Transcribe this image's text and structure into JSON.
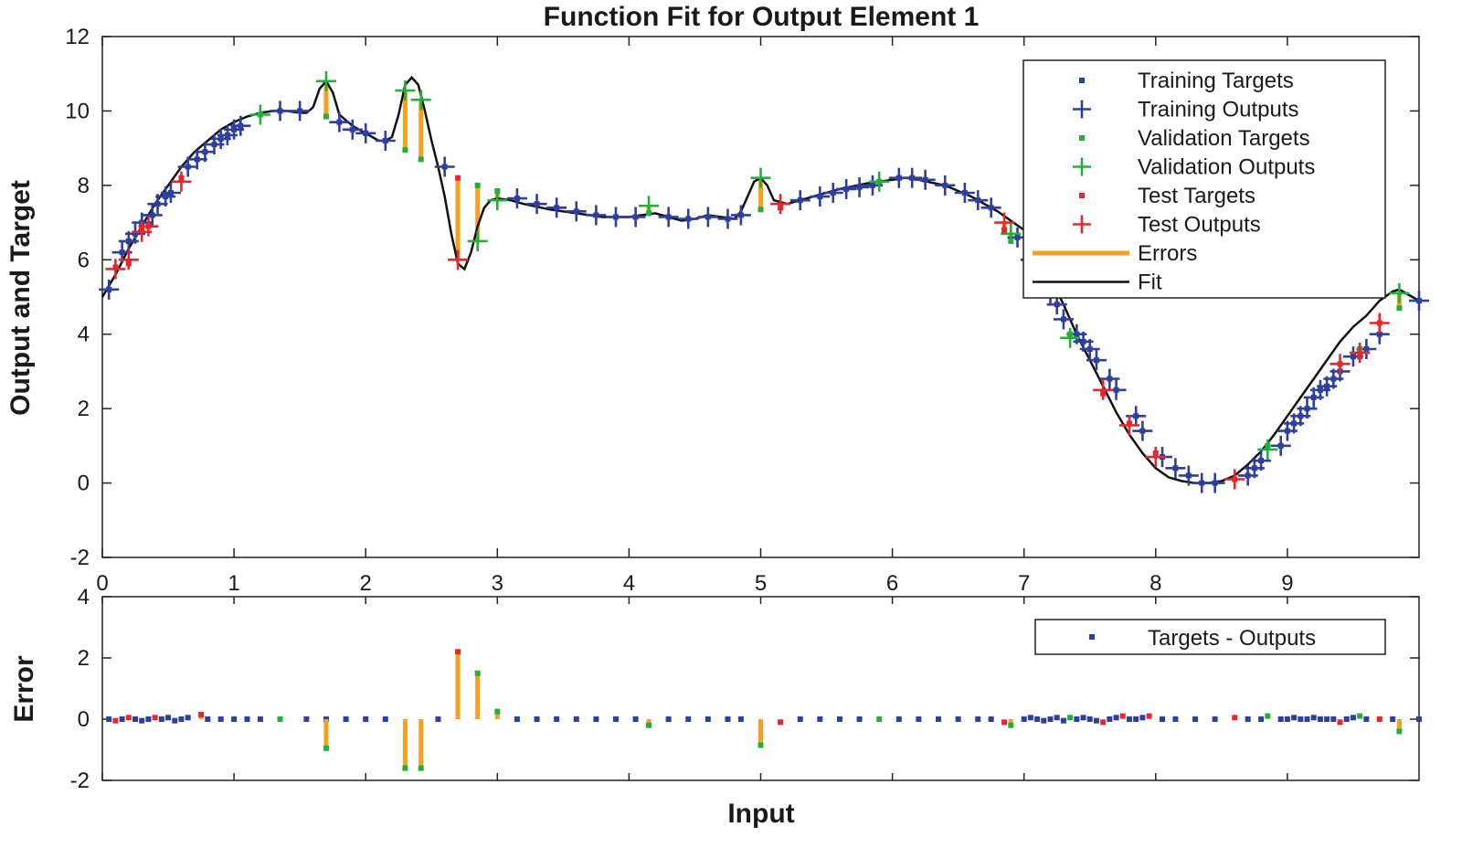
{
  "chart_data": [
    {
      "type": "line",
      "title": "Function Fit for Output Element 1",
      "xlabel": "",
      "ylabel": "Output and Target",
      "xlim": [
        0,
        10
      ],
      "ylim": [
        -2,
        12
      ],
      "xticks": [
        "0",
        "1",
        "2",
        "3",
        "4",
        "5",
        "6",
        "7",
        "8",
        "9"
      ],
      "yticks": [
        "-2",
        "0",
        "2",
        "4",
        "6",
        "8",
        "10",
        "12"
      ],
      "legend_position": "top-right",
      "legend": [
        "Training Targets",
        "Training Outputs",
        "Validation Targets",
        "Validation Outputs",
        "Test Targets",
        "Test Outputs",
        "Errors",
        "Fit"
      ],
      "colors": {
        "training": "#2e3f9e",
        "validation": "#22b03a",
        "test": "#e8262b",
        "errors": "#f5a11e",
        "fit": "#111111"
      },
      "fit_x": [
        0.0,
        0.1,
        0.2,
        0.3,
        0.4,
        0.5,
        0.6,
        0.7,
        0.8,
        0.9,
        1.0,
        1.1,
        1.2,
        1.3,
        1.4,
        1.5,
        1.55,
        1.6,
        1.65,
        1.7,
        1.75,
        1.8,
        1.9,
        2.0,
        2.1,
        2.15,
        2.2,
        2.25,
        2.3,
        2.35,
        2.4,
        2.45,
        2.5,
        2.55,
        2.6,
        2.65,
        2.7,
        2.75,
        2.8,
        2.85,
        2.9,
        2.95,
        3.0,
        3.1,
        3.2,
        3.4,
        3.6,
        3.8,
        4.0,
        4.1,
        4.2,
        4.3,
        4.4,
        4.5,
        4.6,
        4.7,
        4.8,
        4.85,
        4.9,
        4.95,
        5.0,
        5.05,
        5.1,
        5.2,
        5.4,
        5.6,
        5.8,
        6.0,
        6.1,
        6.2,
        6.4,
        6.6,
        6.8,
        7.0,
        7.1,
        7.2,
        7.3,
        7.4,
        7.5,
        7.6,
        7.7,
        7.8,
        7.9,
        8.0,
        8.1,
        8.2,
        8.3,
        8.4,
        8.5,
        8.6,
        8.7,
        8.8,
        8.9,
        9.0,
        9.1,
        9.2,
        9.3,
        9.4,
        9.5,
        9.6,
        9.7,
        9.8,
        9.85,
        9.9,
        9.95,
        10.0
      ],
      "fit_y": [
        5.0,
        5.6,
        6.3,
        6.9,
        7.5,
        8.0,
        8.5,
        8.9,
        9.2,
        9.5,
        9.7,
        9.85,
        9.95,
        10.0,
        10.0,
        9.95,
        9.95,
        10.1,
        10.6,
        10.8,
        10.5,
        9.9,
        9.6,
        9.4,
        9.2,
        9.2,
        9.3,
        9.9,
        10.7,
        10.9,
        10.7,
        10.0,
        9.2,
        8.5,
        7.7,
        6.7,
        5.9,
        5.75,
        6.2,
        6.9,
        7.4,
        7.6,
        7.65,
        7.6,
        7.5,
        7.35,
        7.25,
        7.15,
        7.15,
        7.2,
        7.25,
        7.15,
        7.05,
        7.1,
        7.2,
        7.15,
        7.1,
        7.3,
        7.7,
        8.1,
        8.2,
        8.0,
        7.6,
        7.5,
        7.7,
        7.9,
        8.05,
        8.15,
        8.2,
        8.15,
        8.0,
        7.7,
        7.3,
        6.8,
        6.2,
        5.5,
        4.8,
        4.0,
        3.3,
        2.6,
        1.9,
        1.3,
        0.8,
        0.4,
        0.15,
        0.05,
        0.0,
        0.0,
        0.05,
        0.2,
        0.5,
        0.85,
        1.3,
        1.8,
        2.3,
        2.8,
        3.3,
        3.8,
        4.2,
        4.5,
        4.9,
        5.15,
        5.2,
        5.1,
        5.0,
        4.9
      ],
      "training": {
        "x": [
          0.05,
          0.15,
          0.2,
          0.25,
          0.3,
          0.38,
          0.42,
          0.48,
          0.52,
          0.65,
          0.72,
          0.78,
          0.85,
          0.9,
          0.95,
          1.0,
          1.05,
          1.35,
          1.5,
          1.8,
          1.9,
          2.0,
          2.15,
          2.6,
          3.15,
          3.3,
          3.45,
          3.6,
          3.75,
          3.9,
          4.05,
          4.3,
          4.45,
          4.6,
          4.75,
          4.85,
          5.3,
          5.45,
          5.55,
          5.65,
          5.75,
          5.85,
          6.05,
          6.15,
          6.25,
          6.4,
          6.55,
          6.65,
          6.75,
          6.95,
          7.05,
          7.1,
          7.15,
          7.2,
          7.25,
          7.3,
          7.4,
          7.45,
          7.5,
          7.55,
          7.65,
          7.7,
          7.85,
          7.9,
          8.05,
          8.15,
          8.25,
          8.35,
          8.45,
          8.7,
          8.75,
          8.8,
          8.95,
          9.0,
          9.05,
          9.1,
          9.15,
          9.2,
          9.25,
          9.3,
          9.35,
          9.4,
          9.5,
          9.6,
          9.7,
          10.0
        ],
        "y": [
          5.2,
          6.2,
          6.5,
          6.7,
          7.0,
          7.2,
          7.5,
          7.7,
          7.8,
          8.5,
          8.7,
          8.9,
          9.1,
          9.25,
          9.35,
          9.5,
          9.6,
          10.0,
          10.0,
          9.7,
          9.5,
          9.4,
          9.2,
          8.5,
          7.65,
          7.5,
          7.4,
          7.3,
          7.2,
          7.15,
          7.15,
          7.15,
          7.1,
          7.15,
          7.1,
          7.2,
          7.6,
          7.7,
          7.8,
          7.9,
          7.95,
          8.0,
          8.2,
          8.2,
          8.15,
          8.0,
          7.8,
          7.6,
          7.4,
          6.6,
          6.0,
          5.8,
          5.4,
          5.1,
          4.8,
          4.4,
          4.0,
          3.8,
          3.6,
          3.3,
          2.8,
          2.5,
          1.8,
          1.4,
          0.7,
          0.4,
          0.2,
          0.0,
          0.0,
          0.2,
          0.4,
          0.6,
          1.0,
          1.4,
          1.6,
          1.8,
          2.0,
          2.3,
          2.5,
          2.6,
          2.8,
          3.0,
          3.4,
          3.6,
          4.0,
          4.9
        ]
      },
      "validation": {
        "x": [
          1.2,
          1.7,
          2.3,
          2.42,
          2.85,
          3.0,
          4.15,
          5.0,
          5.9,
          6.9,
          7.35,
          8.85,
          9.55,
          9.85
        ],
        "target": [
          9.9,
          9.85,
          8.95,
          8.7,
          8.0,
          7.85,
          7.25,
          7.35,
          8.1,
          6.5,
          4.0,
          1.0,
          3.6,
          4.7
        ],
        "output": [
          9.9,
          10.8,
          10.55,
          10.3,
          6.5,
          7.6,
          7.45,
          8.2,
          8.1,
          6.7,
          3.9,
          0.9,
          3.5,
          5.1
        ]
      },
      "test": {
        "x": [
          0.1,
          0.2,
          0.3,
          0.35,
          0.6,
          2.7,
          5.15,
          6.85,
          7.6,
          7.8,
          8.0,
          8.6,
          9.4,
          9.55,
          9.7
        ],
        "target": [
          5.8,
          5.9,
          6.8,
          6.9,
          8.2,
          8.2,
          7.4,
          6.8,
          2.4,
          1.6,
          0.8,
          0.1,
          3.2,
          3.4,
          4.3
        ],
        "output": [
          5.75,
          6.0,
          6.75,
          6.9,
          8.1,
          6.0,
          7.5,
          7.0,
          2.5,
          1.55,
          0.7,
          0.1,
          3.2,
          3.5,
          4.3
        ]
      }
    },
    {
      "type": "scatter",
      "title": "",
      "xlabel": "Input",
      "ylabel": "Error",
      "xlim": [
        0,
        10
      ],
      "ylim": [
        -2,
        4
      ],
      "yticks": [
        "-2",
        "0",
        "2",
        "4"
      ],
      "legend_position": "top-right",
      "legend": [
        "Targets - Outputs"
      ],
      "errors": [
        {
          "x": 0.05,
          "e": 0.0,
          "set": "training"
        },
        {
          "x": 0.1,
          "e": -0.05,
          "set": "test"
        },
        {
          "x": 0.15,
          "e": 0.0,
          "set": "training"
        },
        {
          "x": 0.2,
          "e": 0.05,
          "set": "test"
        },
        {
          "x": 0.25,
          "e": 0.0,
          "set": "training"
        },
        {
          "x": 0.3,
          "e": -0.05,
          "set": "training"
        },
        {
          "x": 0.35,
          "e": 0.0,
          "set": "training"
        },
        {
          "x": 0.4,
          "e": 0.05,
          "set": "test"
        },
        {
          "x": 0.45,
          "e": 0.0,
          "set": "training"
        },
        {
          "x": 0.5,
          "e": 0.05,
          "set": "training"
        },
        {
          "x": 0.55,
          "e": -0.05,
          "set": "training"
        },
        {
          "x": 0.6,
          "e": 0.0,
          "set": "training"
        },
        {
          "x": 0.65,
          "e": 0.05,
          "set": "training"
        },
        {
          "x": 0.75,
          "e": 0.15,
          "set": "test"
        },
        {
          "x": 0.8,
          "e": 0.0,
          "set": "training"
        },
        {
          "x": 0.9,
          "e": 0.0,
          "set": "training"
        },
        {
          "x": 1.0,
          "e": 0.0,
          "set": "training"
        },
        {
          "x": 1.1,
          "e": 0.0,
          "set": "training"
        },
        {
          "x": 1.2,
          "e": 0.0,
          "set": "training"
        },
        {
          "x": 1.35,
          "e": 0.0,
          "set": "validation"
        },
        {
          "x": 1.55,
          "e": 0.0,
          "set": "training"
        },
        {
          "x": 1.7,
          "e": 0.0,
          "set": "training"
        },
        {
          "x": 1.7,
          "e": -0.95,
          "set": "validation"
        },
        {
          "x": 1.85,
          "e": 0.0,
          "set": "training"
        },
        {
          "x": 2.0,
          "e": 0.0,
          "set": "training"
        },
        {
          "x": 2.15,
          "e": 0.0,
          "set": "training"
        },
        {
          "x": 2.3,
          "e": -1.6,
          "set": "validation"
        },
        {
          "x": 2.42,
          "e": -1.6,
          "set": "validation"
        },
        {
          "x": 2.55,
          "e": 0.0,
          "set": "training"
        },
        {
          "x": 2.7,
          "e": 2.2,
          "set": "test"
        },
        {
          "x": 2.85,
          "e": 1.5,
          "set": "validation"
        },
        {
          "x": 3.0,
          "e": 0.25,
          "set": "validation"
        },
        {
          "x": 3.15,
          "e": 0.0,
          "set": "training"
        },
        {
          "x": 3.3,
          "e": 0.0,
          "set": "training"
        },
        {
          "x": 3.45,
          "e": 0.0,
          "set": "training"
        },
        {
          "x": 3.6,
          "e": 0.0,
          "set": "training"
        },
        {
          "x": 3.75,
          "e": 0.0,
          "set": "training"
        },
        {
          "x": 3.9,
          "e": 0.0,
          "set": "training"
        },
        {
          "x": 4.05,
          "e": 0.0,
          "set": "training"
        },
        {
          "x": 4.15,
          "e": -0.2,
          "set": "validation"
        },
        {
          "x": 4.3,
          "e": 0.0,
          "set": "training"
        },
        {
          "x": 4.45,
          "e": 0.0,
          "set": "training"
        },
        {
          "x": 4.6,
          "e": 0.0,
          "set": "training"
        },
        {
          "x": 4.75,
          "e": 0.0,
          "set": "training"
        },
        {
          "x": 4.85,
          "e": 0.0,
          "set": "training"
        },
        {
          "x": 5.0,
          "e": -0.85,
          "set": "validation"
        },
        {
          "x": 5.15,
          "e": -0.1,
          "set": "test"
        },
        {
          "x": 5.3,
          "e": 0.0,
          "set": "training"
        },
        {
          "x": 5.45,
          "e": 0.0,
          "set": "training"
        },
        {
          "x": 5.6,
          "e": 0.0,
          "set": "training"
        },
        {
          "x": 5.75,
          "e": 0.0,
          "set": "training"
        },
        {
          "x": 5.9,
          "e": 0.0,
          "set": "validation"
        },
        {
          "x": 6.05,
          "e": 0.0,
          "set": "training"
        },
        {
          "x": 6.2,
          "e": 0.0,
          "set": "training"
        },
        {
          "x": 6.35,
          "e": 0.0,
          "set": "training"
        },
        {
          "x": 6.5,
          "e": 0.0,
          "set": "training"
        },
        {
          "x": 6.65,
          "e": 0.0,
          "set": "training"
        },
        {
          "x": 6.75,
          "e": 0.0,
          "set": "training"
        },
        {
          "x": 6.85,
          "e": -0.1,
          "set": "test"
        },
        {
          "x": 6.9,
          "e": -0.2,
          "set": "validation"
        },
        {
          "x": 7.0,
          "e": 0.0,
          "set": "training"
        },
        {
          "x": 7.05,
          "e": 0.05,
          "set": "training"
        },
        {
          "x": 7.1,
          "e": 0.0,
          "set": "training"
        },
        {
          "x": 7.15,
          "e": -0.05,
          "set": "training"
        },
        {
          "x": 7.2,
          "e": 0.0,
          "set": "training"
        },
        {
          "x": 7.25,
          "e": 0.05,
          "set": "training"
        },
        {
          "x": 7.3,
          "e": -0.05,
          "set": "training"
        },
        {
          "x": 7.35,
          "e": 0.05,
          "set": "validation"
        },
        {
          "x": 7.4,
          "e": 0.0,
          "set": "training"
        },
        {
          "x": 7.45,
          "e": 0.05,
          "set": "training"
        },
        {
          "x": 7.5,
          "e": 0.0,
          "set": "training"
        },
        {
          "x": 7.55,
          "e": -0.05,
          "set": "training"
        },
        {
          "x": 7.6,
          "e": -0.1,
          "set": "test"
        },
        {
          "x": 7.65,
          "e": 0.0,
          "set": "training"
        },
        {
          "x": 7.7,
          "e": 0.05,
          "set": "training"
        },
        {
          "x": 7.75,
          "e": 0.1,
          "set": "test"
        },
        {
          "x": 7.8,
          "e": 0.0,
          "set": "training"
        },
        {
          "x": 7.85,
          "e": 0.0,
          "set": "training"
        },
        {
          "x": 7.9,
          "e": 0.05,
          "set": "training"
        },
        {
          "x": 7.95,
          "e": 0.1,
          "set": "test"
        },
        {
          "x": 8.05,
          "e": 0.0,
          "set": "training"
        },
        {
          "x": 8.15,
          "e": 0.0,
          "set": "training"
        },
        {
          "x": 8.3,
          "e": 0.0,
          "set": "training"
        },
        {
          "x": 8.45,
          "e": 0.0,
          "set": "training"
        },
        {
          "x": 8.6,
          "e": 0.05,
          "set": "test"
        },
        {
          "x": 8.7,
          "e": 0.0,
          "set": "training"
        },
        {
          "x": 8.8,
          "e": 0.0,
          "set": "training"
        },
        {
          "x": 8.85,
          "e": 0.1,
          "set": "validation"
        },
        {
          "x": 8.95,
          "e": 0.0,
          "set": "training"
        },
        {
          "x": 9.0,
          "e": 0.0,
          "set": "training"
        },
        {
          "x": 9.05,
          "e": 0.05,
          "set": "training"
        },
        {
          "x": 9.1,
          "e": 0.0,
          "set": "training"
        },
        {
          "x": 9.15,
          "e": 0.0,
          "set": "training"
        },
        {
          "x": 9.2,
          "e": 0.05,
          "set": "training"
        },
        {
          "x": 9.25,
          "e": 0.0,
          "set": "training"
        },
        {
          "x": 9.3,
          "e": 0.0,
          "set": "training"
        },
        {
          "x": 9.35,
          "e": 0.0,
          "set": "training"
        },
        {
          "x": 9.4,
          "e": -0.1,
          "set": "test"
        },
        {
          "x": 9.45,
          "e": 0.0,
          "set": "training"
        },
        {
          "x": 9.5,
          "e": 0.05,
          "set": "training"
        },
        {
          "x": 9.55,
          "e": 0.1,
          "set": "validation"
        },
        {
          "x": 9.6,
          "e": 0.0,
          "set": "training"
        },
        {
          "x": 9.7,
          "e": 0.0,
          "set": "test"
        },
        {
          "x": 9.8,
          "e": 0.0,
          "set": "training"
        },
        {
          "x": 9.85,
          "e": -0.4,
          "set": "validation"
        },
        {
          "x": 10.0,
          "e": 0.0,
          "set": "training"
        }
      ]
    }
  ]
}
